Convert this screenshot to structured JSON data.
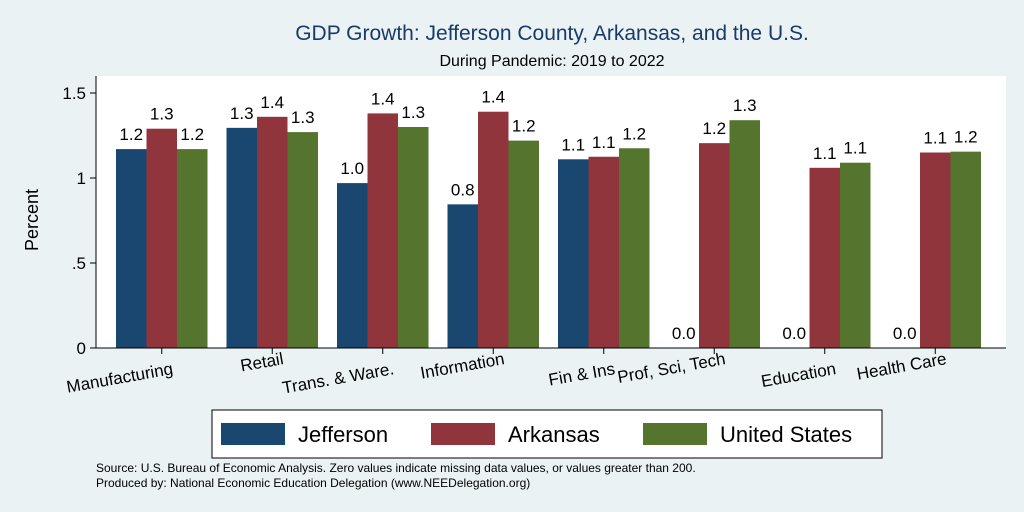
{
  "colors": {
    "background": "#eaf2f3",
    "plot_area": "#ffffff",
    "jefferson": "#1a476f",
    "arkansas": "#90353b",
    "united_states": "#55752f"
  },
  "chart_data": {
    "type": "bar",
    "title": "GDP Growth: Jefferson County, Arkansas, and the U.S.",
    "subtitle": "During Pandemic: 2019 to 2022",
    "ylabel": "Percent",
    "ylim": [
      0,
      1.6
    ],
    "yticks": [
      0,
      0.5,
      1,
      1.5
    ],
    "ytick_labels": [
      "0",
      ".5",
      "1",
      "1.5"
    ],
    "grid": false,
    "legend_position": "bottom",
    "categories": [
      "Manufacturing",
      "Retail",
      "Trans. & Ware.",
      "Information",
      "Fin & Ins",
      "Prof, Sci, Tech",
      "Education",
      "Health Care"
    ],
    "series": [
      {
        "name": "Jefferson",
        "color": "#1a476f",
        "values": [
          1.17,
          1.295,
          0.97,
          0.845,
          1.11,
          0,
          0,
          0
        ],
        "labels": [
          "1.2",
          "1.3",
          "1.0",
          "0.8",
          "1.1",
          "0.0",
          "0.0",
          "0.0"
        ]
      },
      {
        "name": "Arkansas",
        "color": "#90353b",
        "values": [
          1.29,
          1.36,
          1.38,
          1.39,
          1.125,
          1.205,
          1.06,
          1.15
        ],
        "labels": [
          "1.3",
          "1.4",
          "1.4",
          "1.4",
          "1.1",
          "1.2",
          "1.1",
          "1.1"
        ]
      },
      {
        "name": "United States",
        "color": "#55752f",
        "values": [
          1.17,
          1.27,
          1.3,
          1.22,
          1.175,
          1.34,
          1.09,
          1.155
        ],
        "labels": [
          "1.2",
          "1.3",
          "1.3",
          "1.2",
          "1.2",
          "1.3",
          "1.1",
          "1.2"
        ]
      }
    ]
  },
  "notes": {
    "source": "Source: U.S. Bureau of Economic Analysis. Zero values indicate missing data values, or values greater than 200.",
    "produced_by": "Produced by: National Economic Education Delegation (www.NEEDelegation.org)"
  }
}
